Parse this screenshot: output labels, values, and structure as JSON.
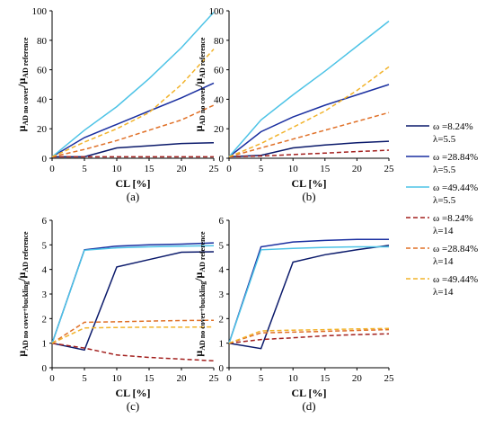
{
  "series_styles": [
    {
      "color": "#0b1a6b",
      "dash": "solid"
    },
    {
      "color": "#1a2fa0",
      "dash": "solid"
    },
    {
      "color": "#4dc3e6",
      "dash": "solid"
    },
    {
      "color": "#a3201e",
      "dash": "dashed"
    },
    {
      "color": "#e07027",
      "dash": "dashed"
    },
    {
      "color": "#f2b32a",
      "dash": "dashed"
    }
  ],
  "legend": [
    {
      "line1": "ω =8.24%",
      "line2": "λ=5.5"
    },
    {
      "line1": "ω =28.84%",
      "line2": "λ=5.5"
    },
    {
      "line1": "ω =49.44%",
      "line2": "λ=5.5"
    },
    {
      "line1": "ω =8.24%",
      "line2": "λ=14"
    },
    {
      "line1": "ω =28.84%",
      "line2": "λ=14"
    },
    {
      "line1": "ω =49.44%",
      "line2": "λ=14"
    }
  ],
  "chart_data": [
    {
      "type": "line",
      "panel": "(a)",
      "caption": "(a)",
      "xlabel": "CL [%]",
      "ylabel_main": "μ",
      "ylabel_sub1": "AD no cover",
      "ylabel_sep": "/μ",
      "ylabel_sub2": "AD reference",
      "x": [
        0,
        5,
        10,
        15,
        20,
        25
      ],
      "xticks": [
        0,
        5,
        10,
        15,
        20,
        25
      ],
      "yticks": [
        0,
        20,
        40,
        60,
        80,
        100
      ],
      "xlim": [
        0,
        25
      ],
      "ylim": [
        0,
        100
      ],
      "series": [
        {
          "values": [
            1,
            1,
            7,
            8.5,
            10,
            10.5
          ]
        },
        {
          "values": [
            1,
            14,
            23,
            32,
            41,
            51
          ]
        },
        {
          "values": [
            1,
            19,
            35,
            54,
            75,
            99
          ]
        },
        {
          "values": [
            1,
            1,
            1,
            1,
            1,
            1
          ]
        },
        {
          "values": [
            1,
            6,
            12,
            19,
            26,
            36
          ]
        },
        {
          "values": [
            1,
            11,
            20,
            31,
            50,
            74
          ]
        }
      ]
    },
    {
      "type": "line",
      "panel": "(b)",
      "caption": "(b)",
      "xlabel": "CL [%]",
      "ylabel_main": "μ",
      "ylabel_sub1": "AD no cover",
      "ylabel_sep": "/μ",
      "ylabel_sub2": "AD reference",
      "x": [
        0,
        5,
        10,
        15,
        20,
        25
      ],
      "xticks": [
        0,
        5,
        10,
        15,
        20,
        25
      ],
      "yticks": [
        0,
        20,
        40,
        60,
        80,
        100
      ],
      "xlim": [
        0,
        25
      ],
      "ylim": [
        0,
        100
      ],
      "series": [
        {
          "values": [
            1,
            2,
            7,
            9,
            10.5,
            11.5
          ]
        },
        {
          "values": [
            1,
            18,
            28,
            36,
            43,
            50
          ]
        },
        {
          "values": [
            1,
            26,
            43,
            59,
            76,
            93
          ]
        },
        {
          "values": [
            1,
            1.5,
            2.5,
            3.5,
            4.5,
            5.5
          ]
        },
        {
          "values": [
            1,
            7,
            13,
            19,
            25,
            31
          ]
        },
        {
          "values": [
            1,
            10,
            21,
            32,
            46,
            62
          ]
        }
      ]
    },
    {
      "type": "line",
      "panel": "(c)",
      "caption": "(c)",
      "xlabel": "CL [%]",
      "ylabel_main": "μ",
      "ylabel_sub1": "AD no cover+buckling",
      "ylabel_sep": "/μ",
      "ylabel_sub2": "AD reference",
      "x": [
        0,
        5,
        10,
        15,
        20,
        25
      ],
      "xticks": [
        0,
        5,
        10,
        15,
        20,
        25
      ],
      "yticks": [
        0,
        1,
        2,
        3,
        4,
        5,
        6
      ],
      "xlim": [
        0,
        25
      ],
      "ylim": [
        0,
        6
      ],
      "series": [
        {
          "values": [
            1,
            0.72,
            4.1,
            4.4,
            4.7,
            4.72
          ]
        },
        {
          "values": [
            1,
            4.8,
            4.95,
            5.0,
            5.03,
            5.08
          ]
        },
        {
          "values": [
            1,
            4.78,
            4.88,
            4.92,
            4.95,
            4.97
          ]
        },
        {
          "values": [
            1,
            0.8,
            0.52,
            0.42,
            0.35,
            0.28
          ]
        },
        {
          "values": [
            1,
            1.85,
            1.87,
            1.9,
            1.92,
            1.93
          ]
        },
        {
          "values": [
            1,
            1.62,
            1.64,
            1.65,
            1.65,
            1.66
          ]
        }
      ]
    },
    {
      "type": "line",
      "panel": "(d)",
      "caption": "(d)",
      "xlabel": "CL [%]",
      "ylabel_main": "μ",
      "ylabel_sub1": "AD no cover+buckling",
      "ylabel_sep": "/μ",
      "ylabel_sub2": "AD reference",
      "x": [
        0,
        5,
        10,
        15,
        20,
        25
      ],
      "xticks": [
        0,
        5,
        10,
        15,
        20,
        25
      ],
      "yticks": [
        0,
        1,
        2,
        3,
        4,
        5,
        6
      ],
      "xlim": [
        0,
        25
      ],
      "ylim": [
        0,
        6
      ],
      "series": [
        {
          "values": [
            1,
            0.78,
            4.3,
            4.6,
            4.8,
            4.98
          ]
        },
        {
          "values": [
            1,
            4.92,
            5.12,
            5.18,
            5.22,
            5.22
          ]
        },
        {
          "values": [
            1,
            4.8,
            4.86,
            4.9,
            4.92,
            4.92
          ]
        },
        {
          "values": [
            1,
            1.15,
            1.22,
            1.3,
            1.35,
            1.38
          ]
        },
        {
          "values": [
            1,
            1.42,
            1.45,
            1.48,
            1.52,
            1.55
          ]
        },
        {
          "values": [
            1,
            1.5,
            1.53,
            1.55,
            1.58,
            1.6
          ]
        }
      ]
    }
  ]
}
